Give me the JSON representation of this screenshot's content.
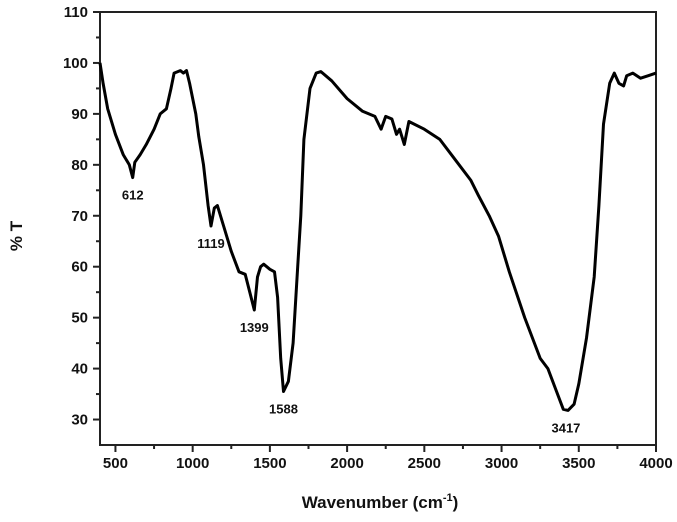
{
  "chart_data": {
    "type": "line",
    "title": "",
    "xlabel": "Wavenumber (cm",
    "xlabel_sup": "-1",
    "xlabel_end": ")",
    "ylabel": "% T",
    "xlim": [
      400,
      4000
    ],
    "ylim": [
      25,
      110
    ],
    "xticks": [
      500,
      1000,
      1500,
      2000,
      2500,
      3000,
      3500,
      4000
    ],
    "yticks": [
      30,
      40,
      50,
      60,
      70,
      80,
      90,
      100,
      110
    ],
    "grid": false,
    "series": [
      {
        "name": "spectrum",
        "color": "#000000",
        "x": [
          400,
          420,
          450,
          500,
          550,
          590,
          612,
          625,
          660,
          700,
          750,
          790,
          830,
          860,
          880,
          920,
          940,
          960,
          980,
          1020,
          1040,
          1070,
          1100,
          1119,
          1140,
          1160,
          1200,
          1250,
          1300,
          1340,
          1370,
          1399,
          1420,
          1440,
          1460,
          1500,
          1530,
          1550,
          1570,
          1588,
          1620,
          1650,
          1680,
          1700,
          1720,
          1760,
          1800,
          1830,
          1900,
          2000,
          2100,
          2180,
          2220,
          2250,
          2290,
          2320,
          2340,
          2370,
          2400,
          2500,
          2600,
          2700,
          2800,
          2850,
          2920,
          2980,
          3050,
          3150,
          3250,
          3300,
          3350,
          3400,
          3430,
          3470,
          3500,
          3550,
          3600,
          3630,
          3660,
          3700,
          3730,
          3760,
          3790,
          3810,
          3850,
          3900,
          3950,
          4000
        ],
        "y": [
          100,
          96,
          91,
          86,
          82,
          80,
          77.5,
          80.5,
          82,
          84,
          87,
          90,
          91,
          95,
          98,
          98.5,
          98,
          98.5,
          96,
          90,
          85.5,
          80,
          72,
          68,
          71.5,
          72,
          68,
          63,
          59,
          58.5,
          55,
          51.5,
          58,
          60,
          60.5,
          59.5,
          59,
          54,
          42,
          35.5,
          37.5,
          45,
          60,
          70,
          85,
          95,
          98,
          98.3,
          96.5,
          93,
          90.5,
          89.5,
          87,
          89.5,
          89,
          86,
          87,
          84,
          88.5,
          87,
          85,
          81,
          77,
          74,
          70,
          66,
          59,
          50,
          42,
          40,
          36,
          32,
          31.8,
          33,
          37,
          46,
          58,
          72,
          88,
          96,
          98,
          96,
          95.5,
          97.5,
          98,
          97,
          97.5,
          98
        ]
      }
    ],
    "annotations": [
      {
        "text": "612",
        "x": 612,
        "y": 77.5
      },
      {
        "text": "1119",
        "x": 1119,
        "y": 68
      },
      {
        "text": "1399",
        "x": 1399,
        "y": 51.5
      },
      {
        "text": "1588",
        "x": 1588,
        "y": 35.5
      },
      {
        "text": "3417",
        "x": 3417,
        "y": 31.8
      }
    ]
  }
}
